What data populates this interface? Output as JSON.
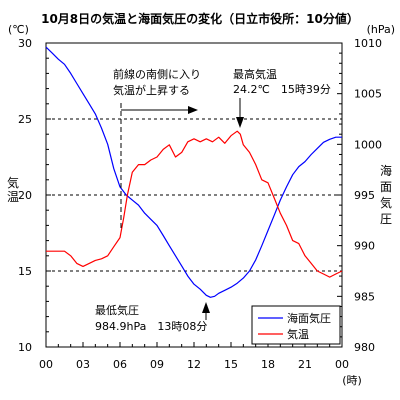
{
  "chart_data": {
    "type": "line",
    "title": "10月8日の気温と海面気圧の変化（日立市役所：10分値）",
    "x_tick_labels": [
      "00",
      "03",
      "06",
      "09",
      "12",
      "15",
      "18",
      "21",
      "00"
    ],
    "x_unit": "(時)",
    "left_axis": {
      "label": "気温",
      "unit": "(℃)",
      "ylim": [
        10,
        30
      ],
      "ticks": [
        10,
        15,
        20,
        25,
        30
      ]
    },
    "right_axis": {
      "label": "海面気圧",
      "unit": "(hPa)",
      "ylim": [
        980,
        1010
      ],
      "ticks": [
        980,
        985,
        990,
        995,
        1000,
        1005,
        1010
      ]
    },
    "reference_lines_temperature": [
      15,
      20,
      25
    ],
    "legend_position": "bottom-right",
    "series": [
      {
        "name": "海面気圧",
        "axis": "right",
        "color": "#0000ff",
        "points": [
          [
            0.0,
            1009.6
          ],
          [
            0.5,
            1009.0
          ],
          [
            1.0,
            1008.4
          ],
          [
            1.5,
            1007.9
          ],
          [
            2.0,
            1007.0
          ],
          [
            2.5,
            1006.0
          ],
          [
            3.0,
            1005.0
          ],
          [
            3.5,
            1004.0
          ],
          [
            4.0,
            1003.0
          ],
          [
            4.5,
            1001.6
          ],
          [
            5.0,
            1000.0
          ],
          [
            5.5,
            997.6
          ],
          [
            6.0,
            995.8
          ],
          [
            6.5,
            995.0
          ],
          [
            7.0,
            994.5
          ],
          [
            7.5,
            994.0
          ],
          [
            8.0,
            993.2
          ],
          [
            8.5,
            992.6
          ],
          [
            9.0,
            992.0
          ],
          [
            9.5,
            991.0
          ],
          [
            10.0,
            990.0
          ],
          [
            10.5,
            989.0
          ],
          [
            11.0,
            988.0
          ],
          [
            11.5,
            987.0
          ],
          [
            12.0,
            986.2
          ],
          [
            12.5,
            985.7
          ],
          [
            13.0,
            985.1
          ],
          [
            13.33,
            984.9
          ],
          [
            13.67,
            985.0
          ],
          [
            14.0,
            985.3
          ],
          [
            14.5,
            985.6
          ],
          [
            15.0,
            985.9
          ],
          [
            15.5,
            986.3
          ],
          [
            16.0,
            986.8
          ],
          [
            16.5,
            987.5
          ],
          [
            17.0,
            988.6
          ],
          [
            17.5,
            990.0
          ],
          [
            18.0,
            991.5
          ],
          [
            18.5,
            993.0
          ],
          [
            19.0,
            994.5
          ],
          [
            19.5,
            995.8
          ],
          [
            20.0,
            997.0
          ],
          [
            20.5,
            997.8
          ],
          [
            21.0,
            998.3
          ],
          [
            21.5,
            999.0
          ],
          [
            22.0,
            999.6
          ],
          [
            22.5,
            1000.2
          ],
          [
            23.0,
            1000.5
          ],
          [
            23.5,
            1000.7
          ],
          [
            24.0,
            1000.7
          ]
        ]
      },
      {
        "name": "気温",
        "axis": "left",
        "color": "#ff0000",
        "points": [
          [
            0.0,
            16.3
          ],
          [
            0.5,
            16.3
          ],
          [
            1.0,
            16.3
          ],
          [
            1.5,
            16.3
          ],
          [
            2.0,
            16.0
          ],
          [
            2.5,
            15.5
          ],
          [
            3.0,
            15.3
          ],
          [
            3.5,
            15.5
          ],
          [
            4.0,
            15.7
          ],
          [
            4.5,
            15.8
          ],
          [
            5.0,
            16.0
          ],
          [
            5.5,
            16.6
          ],
          [
            6.0,
            17.2
          ],
          [
            6.3,
            18.5
          ],
          [
            6.6,
            20.0
          ],
          [
            7.0,
            21.5
          ],
          [
            7.5,
            22.0
          ],
          [
            8.0,
            22.0
          ],
          [
            8.5,
            22.3
          ],
          [
            9.0,
            22.5
          ],
          [
            9.5,
            23.0
          ],
          [
            10.0,
            23.3
          ],
          [
            10.5,
            22.5
          ],
          [
            11.0,
            22.8
          ],
          [
            11.5,
            23.5
          ],
          [
            12.0,
            23.7
          ],
          [
            12.5,
            23.5
          ],
          [
            13.0,
            23.7
          ],
          [
            13.5,
            23.5
          ],
          [
            14.0,
            23.8
          ],
          [
            14.5,
            23.4
          ],
          [
            15.0,
            23.9
          ],
          [
            15.5,
            24.2
          ],
          [
            15.75,
            24.0
          ],
          [
            16.0,
            23.3
          ],
          [
            16.5,
            22.8
          ],
          [
            17.0,
            22.0
          ],
          [
            17.5,
            21.0
          ],
          [
            18.0,
            20.8
          ],
          [
            18.5,
            19.8
          ],
          [
            19.0,
            18.8
          ],
          [
            19.5,
            18.0
          ],
          [
            20.0,
            17.0
          ],
          [
            20.5,
            16.8
          ],
          [
            21.0,
            16.0
          ],
          [
            21.5,
            15.5
          ],
          [
            22.0,
            15.0
          ],
          [
            22.5,
            14.8
          ],
          [
            23.0,
            14.6
          ],
          [
            23.5,
            14.8
          ],
          [
            24.0,
            15.0
          ]
        ]
      }
    ],
    "annotations": {
      "front_line1": "前線の南側に入り",
      "front_line2": "気温が上昇する",
      "max_title": "最高気温",
      "max_value": "24.2℃　15時39分",
      "min_title": "最低気圧",
      "min_value": "984.9hPa　13時08分"
    }
  }
}
